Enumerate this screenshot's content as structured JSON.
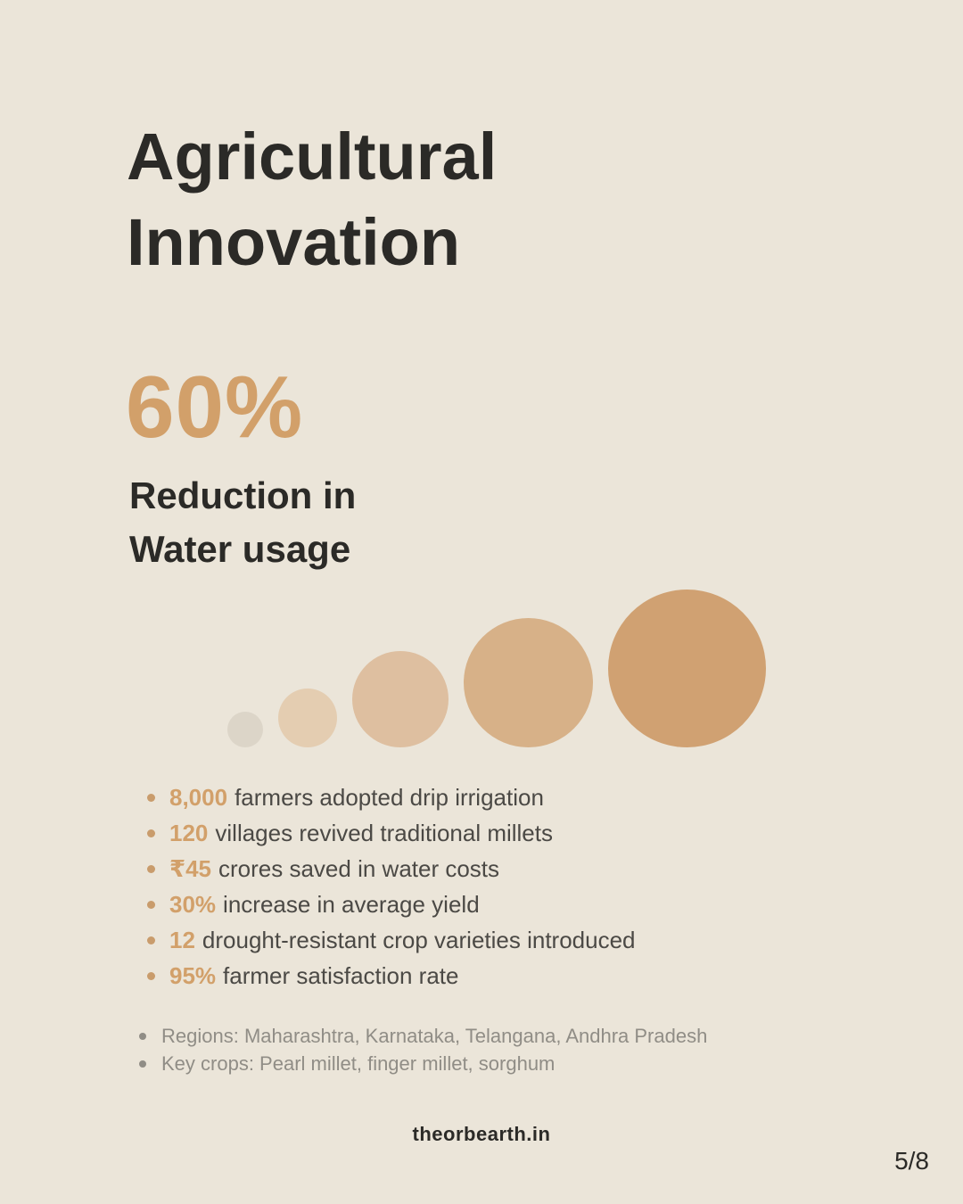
{
  "theme": {
    "bg": "#ebe5d9",
    "accent": "#d2a06a",
    "ink": "#2b2a27",
    "body": "#4b4945",
    "muted": "#908d86",
    "bullet": "#c99c6c"
  },
  "header": {
    "title_lines": [
      "Agricultural",
      "Innovation"
    ]
  },
  "highlight": {
    "value": "60%",
    "label_lines": [
      "Reduction in",
      "Water usage"
    ]
  },
  "bubbles": [
    {
      "size": 40,
      "color": "#dcd5c8"
    },
    {
      "size": 66,
      "color": "#e4cdb1"
    },
    {
      "size": 108,
      "color": "#debfa0"
    },
    {
      "size": 145,
      "color": "#d7b188"
    },
    {
      "size": 177,
      "color": "#d0a172"
    }
  ],
  "stats": [
    {
      "highlight": "8,000",
      "text": "farmers adopted drip irrigation"
    },
    {
      "highlight": "120",
      "text": "villages revived traditional millets"
    },
    {
      "highlight": "₹45",
      "text": "crores saved in water costs"
    },
    {
      "highlight": "30%",
      "text": "increase in average yield"
    },
    {
      "highlight": "12",
      "text": "drought-resistant crop varieties introduced"
    },
    {
      "highlight": "95%",
      "text": "farmer satisfaction rate"
    }
  ],
  "notes": [
    "Regions: Maharashtra, Karnataka, Telangana, Andhra Pradesh",
    "Key crops: Pearl millet, finger millet, sorghum"
  ],
  "footer": {
    "site": "theorbearth.in",
    "page_indicator": "5/8"
  }
}
